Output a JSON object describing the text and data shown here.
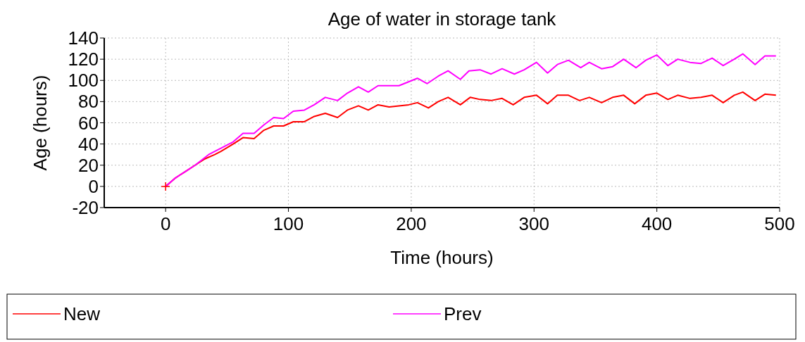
{
  "chart_data": {
    "type": "line",
    "title": "Age of water in storage tank",
    "xlabel": "Time (hours)",
    "ylabel": "Age (hours)",
    "xlim": [
      -50,
      500
    ],
    "xticks": [
      0,
      100,
      200,
      300,
      400,
      500
    ],
    "ylim": [
      -20,
      140
    ],
    "yticks": [
      -20,
      0,
      20,
      40,
      60,
      80,
      100,
      120,
      140
    ],
    "grid": true,
    "legend": "bottom",
    "line_style": "solid",
    "series": [
      {
        "name": "New",
        "color": "#ff0000",
        "x": [
          0,
          8,
          16,
          24,
          32,
          40,
          45,
          55,
          63,
          72,
          80,
          88,
          96,
          104,
          113,
          121,
          130,
          140,
          148,
          157,
          165,
          173,
          182,
          190,
          198,
          205,
          214,
          222,
          230,
          240,
          248,
          256,
          265,
          274,
          283,
          292,
          302,
          311,
          319,
          328,
          337,
          345,
          355,
          364,
          373,
          382,
          391,
          400,
          409,
          417,
          427,
          436,
          445,
          454,
          463,
          470,
          480,
          488,
          497
        ],
        "values": [
          0,
          8,
          14,
          20,
          26,
          30,
          33,
          40,
          46,
          45,
          53,
          57,
          57,
          61,
          61,
          66,
          69,
          65,
          72,
          76,
          72,
          77,
          75,
          76,
          77,
          79,
          74,
          80,
          84,
          77,
          84,
          82,
          81,
          83,
          77,
          84,
          86,
          78,
          86,
          86,
          81,
          84,
          79,
          84,
          86,
          78,
          86,
          88,
          82,
          86,
          83,
          84,
          86,
          79,
          86,
          89,
          81,
          87,
          86
        ]
      },
      {
        "name": "Prev",
        "color": "#ff00ff",
        "x": [
          0,
          8,
          16,
          24,
          35,
          45,
          55,
          63,
          72,
          80,
          88,
          96,
          104,
          113,
          121,
          130,
          140,
          148,
          157,
          165,
          173,
          190,
          205,
          213,
          222,
          230,
          240,
          247,
          256,
          265,
          274,
          284,
          292,
          302,
          311,
          319,
          328,
          338,
          345,
          355,
          364,
          373,
          383,
          391,
          400,
          409,
          417,
          427,
          436,
          445,
          454,
          463,
          470,
          480,
          488,
          497
        ],
        "values": [
          0,
          8,
          14,
          20,
          30,
          36,
          42,
          50,
          50,
          58,
          65,
          64,
          71,
          72,
          77,
          84,
          81,
          88,
          94,
          89,
          95,
          95,
          102,
          97,
          104,
          109,
          101,
          109,
          110,
          106,
          111,
          106,
          110,
          117,
          107,
          115,
          119,
          112,
          117,
          111,
          113,
          120,
          112,
          119,
          124,
          114,
          120,
          117,
          116,
          121,
          114,
          120,
          125,
          115,
          123,
          123
        ]
      },
      {
        "type": "scatter",
        "color": "#ff0000",
        "marker": "cross",
        "x": [
          0
        ],
        "values": [
          0
        ]
      }
    ]
  }
}
